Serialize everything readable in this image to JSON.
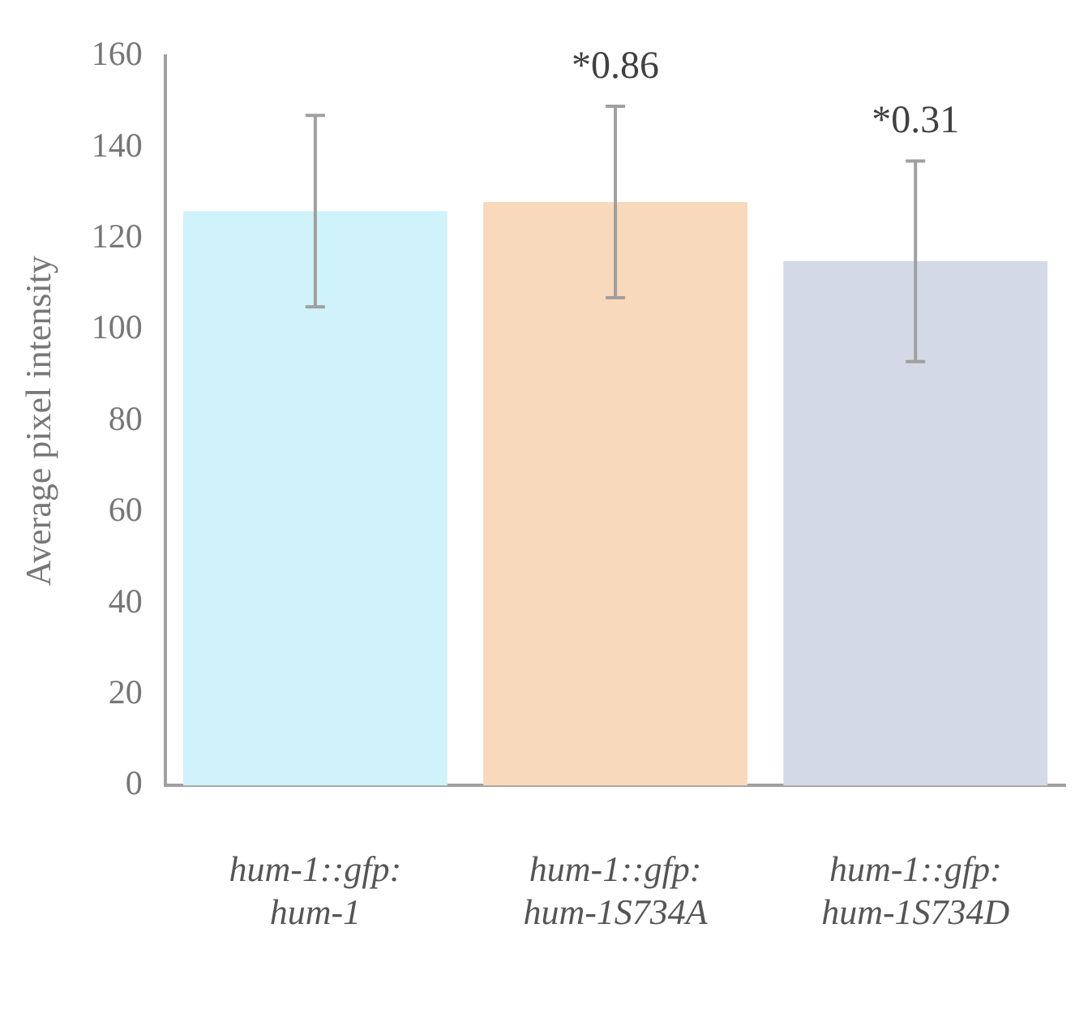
{
  "chart_data": {
    "type": "bar",
    "ylabel": "Average pixel intensity",
    "categories": [
      "hum-1::gfp:\nhum-1",
      "hum-1::gfp:\nhum-1S734A",
      "hum-1::gfp:\nhum-1S734D"
    ],
    "values": [
      126,
      128,
      115
    ],
    "colors": [
      "#cff2fb",
      "#f9d9bb",
      "#d3d9e6"
    ],
    "errors": [
      21,
      21,
      22
    ],
    "annotations": [
      "*0.86",
      "*0.31"
    ],
    "ylim": [
      0,
      160
    ],
    "yticks": [
      0,
      20,
      40,
      60,
      80,
      100,
      120,
      140,
      160
    ],
    "grid": false,
    "legend": false
  }
}
